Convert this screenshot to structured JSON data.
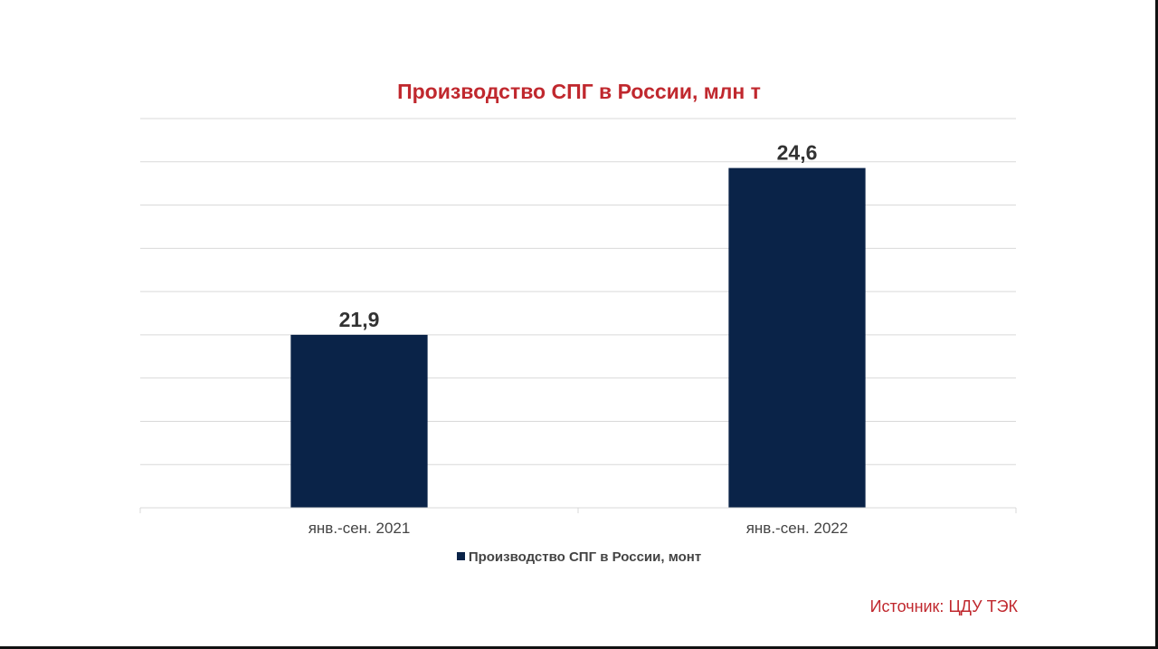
{
  "chart_data": {
    "type": "bar",
    "title": "Производство СПГ в России, млн т",
    "categories": [
      "янв.-сен. 2021",
      "янв.-сен. 2022"
    ],
    "series": [
      {
        "name": "Производство СПГ в России, монт",
        "values": [
          21.9,
          24.6
        ],
        "value_labels": [
          "21,9",
          "24,6"
        ],
        "color": "#0a2348"
      }
    ],
    "xlabel": "",
    "ylabel": "",
    "ylim": [
      19.1,
      25.4
    ],
    "grid": true,
    "legend": "bottom-center"
  },
  "source": "Источник: ЦДУ ТЭК",
  "colors": {
    "title": "#c0282e",
    "bar": "#0a2348",
    "grid": "#d9d9d9"
  }
}
